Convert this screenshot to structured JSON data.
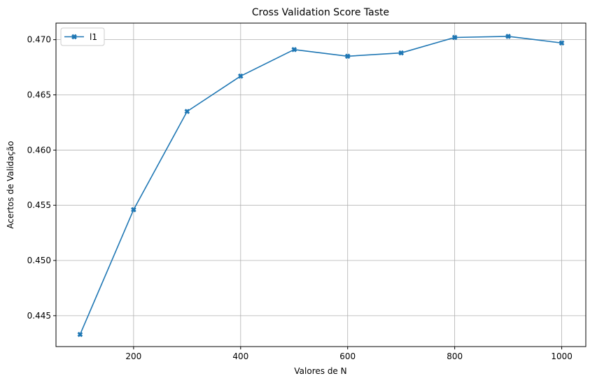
{
  "chart_data": {
    "type": "line",
    "title": "Cross Validation Score Taste",
    "xlabel": "Valores de N",
    "ylabel": "Acertos de Validação",
    "x": [
      100,
      200,
      300,
      400,
      500,
      600,
      700,
      800,
      900,
      1000
    ],
    "series": [
      {
        "name": "l1",
        "values": [
          0.4433,
          0.4546,
          0.4635,
          0.4667,
          0.4691,
          0.4685,
          0.4688,
          0.4702,
          0.4703,
          0.4697
        ],
        "color": "#1f77b4",
        "marker": "x-filled"
      }
    ],
    "xlim": [
      55,
      1045
    ],
    "ylim": [
      0.4422,
      0.4715
    ],
    "xticks": [
      200,
      400,
      600,
      800,
      1000
    ],
    "xtick_labels": [
      "200",
      "400",
      "600",
      "800",
      "1000"
    ],
    "yticks": [
      0.445,
      0.45,
      0.455,
      0.46,
      0.465,
      0.47
    ],
    "ytick_labels": [
      "0.445",
      "0.450",
      "0.455",
      "0.460",
      "0.465",
      "0.470"
    ],
    "grid": true,
    "legend_position": "top-left"
  }
}
